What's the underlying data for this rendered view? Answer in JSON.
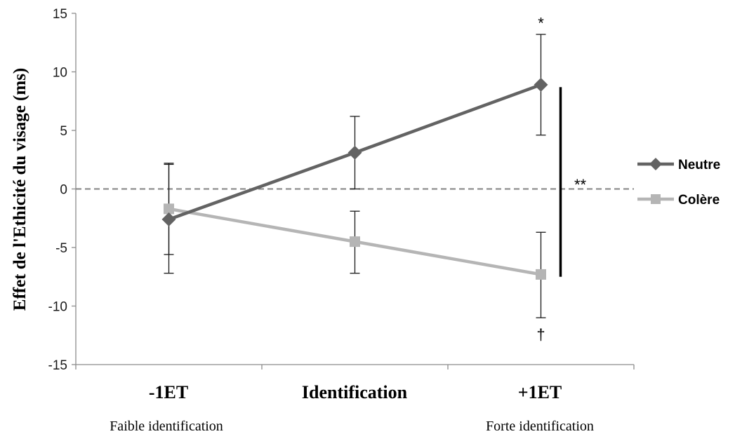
{
  "chart_data": {
    "type": "line",
    "ylabel": "Effet de l'Ethicité du visage (ms)",
    "ylim": [
      -15,
      15
    ],
    "yticks": [
      -15,
      -10,
      -5,
      0,
      5,
      10,
      15
    ],
    "ytick_labels": [
      "-15",
      "-10",
      "-5",
      "0",
      "5",
      "10",
      "15"
    ],
    "categories": [
      "-1ET",
      "Identification",
      "+1ET"
    ],
    "category_sublabels": [
      "Faible identification",
      "",
      "Forte identification"
    ],
    "reference_line": {
      "y": 0,
      "style": "dashed",
      "color": "#808080"
    },
    "series": [
      {
        "name": "Neutre",
        "marker": "diamond",
        "color": "#636363",
        "values": [
          -2.6,
          3.1,
          8.9
        ],
        "error_low": [
          -7.2,
          0.0,
          4.6
        ],
        "error_high": [
          2.1,
          6.2,
          13.2
        ]
      },
      {
        "name": "Colère",
        "marker": "square",
        "color": "#b5b5b5",
        "values": [
          -1.7,
          -4.5,
          -7.3
        ],
        "error_low": [
          -5.6,
          -7.2,
          -11.0
        ],
        "error_high": [
          2.2,
          -1.9,
          -3.7
        ]
      }
    ],
    "annotations": [
      {
        "text": "*",
        "x_index": 2,
        "y": 14.2
      },
      {
        "text": "†",
        "x_index": 2,
        "y": -12.4
      },
      {
        "text": "**",
        "x_index": 2,
        "y": 0.4
      }
    ],
    "significance_bar": {
      "x_index": 2,
      "y_from": 8.7,
      "y_to": -7.5
    },
    "legend": {
      "position": "right"
    },
    "grid": false
  }
}
